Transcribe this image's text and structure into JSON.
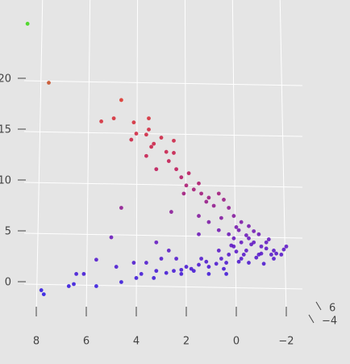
{
  "chart_data": {
    "type": "scatter3d",
    "x": [
      8.35,
      7.5,
      4.6,
      5.4,
      4.9,
      4.1,
      3.5,
      3.5,
      4,
      3.6,
      3.0,
      4.2,
      3.3,
      3.4,
      3.6,
      2.5,
      2.8,
      3.2,
      2.7,
      2.4,
      2.5,
      4.6,
      2.2,
      1.9,
      2.0,
      1.7,
      1.4,
      2.1,
      1.2,
      1.1,
      0.9,
      1.5,
      0.7,
      0.5,
      0.3,
      2.6,
      1.5,
      1.1,
      0.6,
      0.1,
      -0.2,
      -0.5,
      0.7,
      0.3,
      1.5,
      5.0,
      3.2,
      2.7,
      3.0,
      2.4,
      3.6,
      4.1,
      4.8,
      5.6,
      6.1,
      6.5,
      5.6,
      4.6,
      4.0,
      3.3,
      7.8,
      7.7,
      6.4,
      6.7,
      1.7,
      1.1,
      0.4,
      -0.2,
      -0.9,
      -1.5,
      -2.0,
      -0.2,
      -0.5,
      0.1,
      -1.2,
      -0.9,
      -0.1,
      0.7,
      1.4,
      2.0,
      2.5,
      2.8,
      -1.5,
      -1.8,
      0.4,
      1.1,
      -0.5,
      -1.0,
      0.3,
      -0.4,
      0.1,
      -1.4,
      -0.7,
      0.6,
      1.5,
      2.2,
      3.2,
      3.8,
      -1.0,
      -1.2,
      -0.8,
      -0.3,
      0.0,
      -0.6,
      -1.6,
      -1.9,
      -0.1,
      0.2,
      -0.4,
      0.0,
      -0.7,
      -1.3,
      0.8,
      1.2,
      1.8,
      2.2,
      0.5,
      -1.1
    ],
    "z": [
      25.6,
      19.8,
      18.1,
      16,
      16.3,
      15.9,
      16.3,
      15.2,
      14.8,
      14.7,
      14.4,
      14.2,
      13.8,
      13.5,
      12.6,
      14.1,
      13,
      11.3,
      12.1,
      11.3,
      12.9,
      7.5,
      10.5,
      10.9,
      9.7,
      9.3,
      8.9,
      8.9,
      8.1,
      8.5,
      7.7,
      9.9,
      8.9,
      8.3,
      7.5,
      7.1,
      6.7,
      6.1,
      6.5,
      6.7,
      6.1,
      5.7,
      5.3,
      4.9,
      4.9,
      4.6,
      4.1,
      3.3,
      2.5,
      2.5,
      2.1,
      2.1,
      1.7,
      2.4,
      1.0,
      0,
      -0.2,
      0.2,
      0.6,
      0.6,
      -0.6,
      -1.0,
      1.0,
      -0.2,
      1.3,
      1.7,
      2.1,
      2.5,
      2.9,
      3.3,
      3.7,
      4.1,
      4.5,
      3.7,
      4.1,
      4.9,
      5.3,
      3.3,
      2.5,
      1.7,
      1.3,
      1.1,
      2.5,
      2.9,
      1.0,
      1.0,
      2.1,
      3.7,
      2.9,
      3.3,
      4.5,
      2.9,
      4.1,
      2.5,
      1.9,
      1.0,
      1.3,
      1.0,
      3.0,
      3.5,
      2.6,
      2.9,
      3.2,
      3.9,
      3.0,
      3.4,
      2.2,
      3.8,
      4.8,
      5.6,
      5.2,
      4.4,
      2.0,
      2.2,
      1.5,
      1.4,
      1.5,
      2.0
    ],
    "colorscale": [
      "#1010f0",
      "#6010c0",
      "#c01050",
      "#e03020",
      "#30e010"
    ],
    "xlim": [
      8.6,
      -2.5
    ],
    "zlim": [
      -3,
      26
    ],
    "xticks": [
      8,
      6,
      4,
      2,
      0,
      {
        "value": -2,
        "label": "−2"
      }
    ],
    "zticks": [
      0,
      5,
      10,
      15,
      20
    ],
    "yticks": [
      6,
      {
        "value": -4,
        "label": "−4"
      }
    ],
    "grid": true
  }
}
